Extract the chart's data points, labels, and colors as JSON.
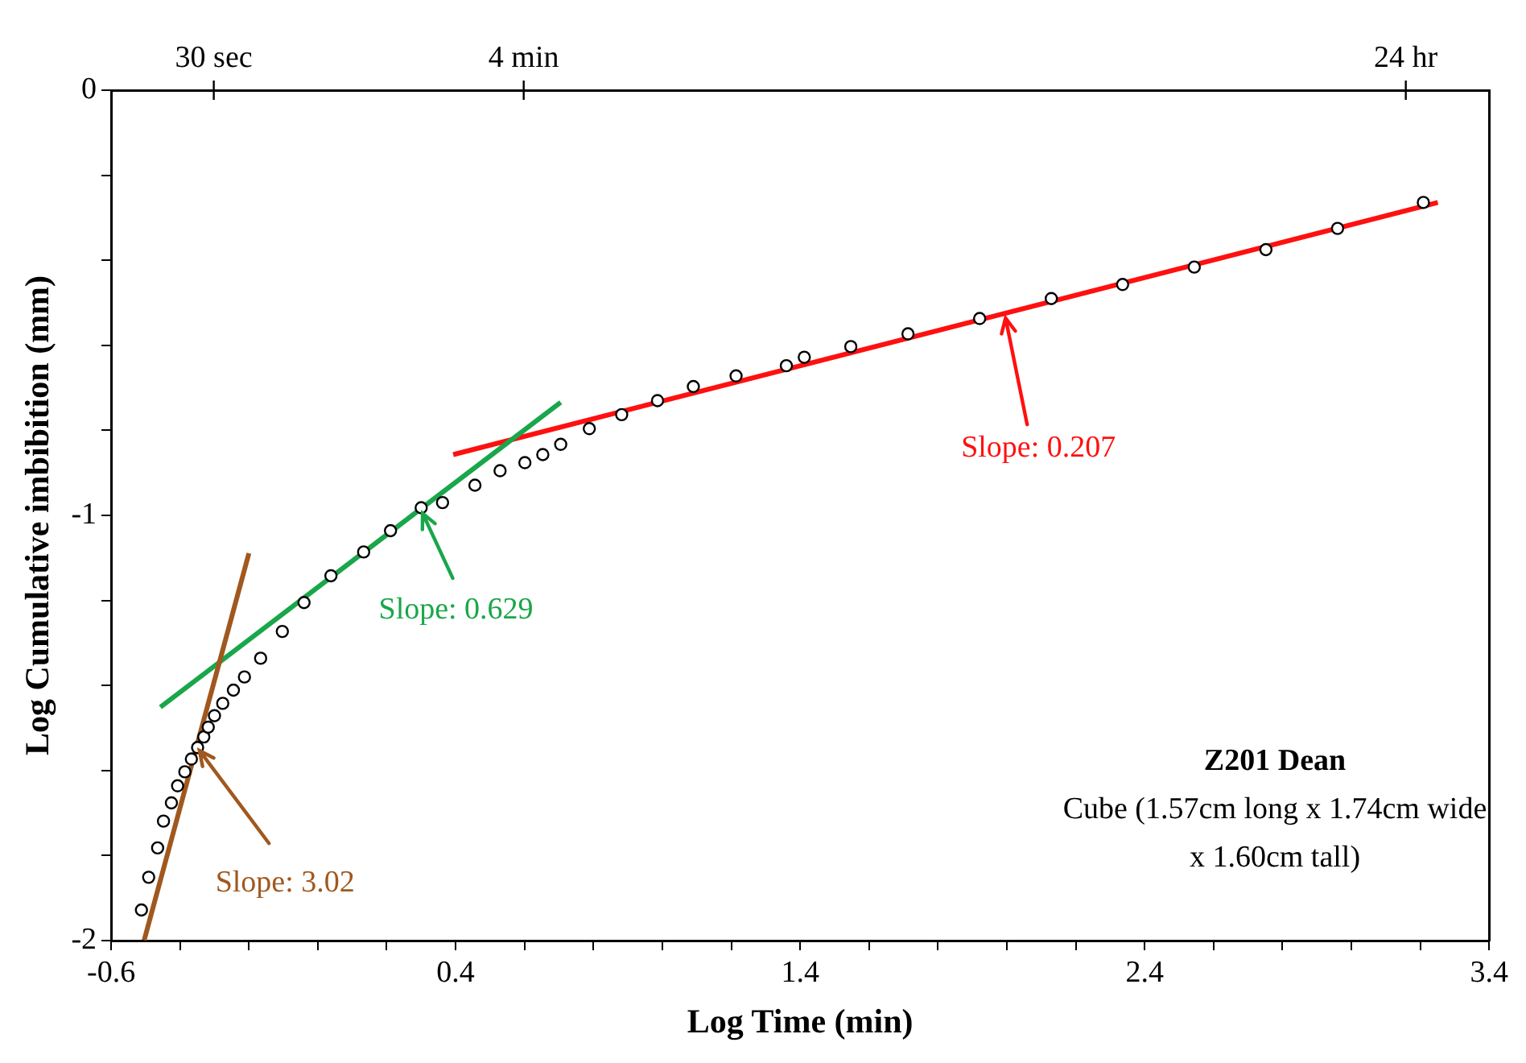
{
  "chart_data": {
    "type": "scatter",
    "xlabel": "Log Time (min)",
    "ylabel": "Log Cumulative imbibition (mm)",
    "xlim": [
      -0.6,
      3.4
    ],
    "xticks": [
      -0.6,
      {
        "value": -0.4,
        "label": null
      },
      {
        "value": -0.2,
        "label": null
      },
      {
        "value": 0,
        "label": null
      },
      {
        "value": 0.2,
        "label": null
      },
      0.4,
      {
        "value": 0.6,
        "label": null
      },
      {
        "value": 0.8,
        "label": null
      },
      {
        "value": 1.0,
        "label": null
      },
      {
        "value": 1.2,
        "label": null
      },
      1.4,
      {
        "value": 1.6,
        "label": null
      },
      {
        "value": 1.8,
        "label": null
      },
      {
        "value": 2.0,
        "label": null
      },
      {
        "value": 2.2,
        "label": null
      },
      2.4,
      {
        "value": 2.6,
        "label": null
      },
      {
        "value": 2.8,
        "label": null
      },
      {
        "value": 3.0,
        "label": null
      },
      {
        "value": 3.2,
        "label": null
      },
      3.4
    ],
    "ylim": [
      -2,
      0
    ],
    "yticks": [
      -2,
      {
        "value": -1.8,
        "label": null
      },
      {
        "value": -1.6,
        "label": null
      },
      {
        "value": -1.4,
        "label": null
      },
      {
        "value": -1.2,
        "label": null
      },
      -1,
      {
        "value": -0.8,
        "label": null
      },
      {
        "value": -0.6,
        "label": null
      },
      {
        "value": -0.4,
        "label": null
      },
      {
        "value": -0.2,
        "label": null
      },
      0
    ],
    "grid": false,
    "series": [
      {
        "type": "scatter",
        "marker": "circle",
        "color": "#000000",
        "x": [
          -0.512,
          -0.491,
          -0.465,
          -0.448,
          -0.425,
          -0.407,
          -0.386,
          -0.367,
          -0.349,
          -0.331,
          -0.318,
          -0.3,
          -0.276,
          -0.245,
          -0.213,
          -0.166,
          -0.103,
          -0.04,
          0.038,
          0.133,
          0.211,
          0.3,
          0.362,
          0.456,
          0.529,
          0.601,
          0.653,
          0.705,
          0.788,
          0.882,
          0.986,
          1.09,
          1.214,
          1.36,
          1.412,
          1.547,
          1.713,
          1.921,
          2.129,
          2.336,
          2.544,
          2.752,
          2.96,
          3.209
        ],
        "values": [
          -1.928,
          -1.851,
          -1.782,
          -1.719,
          -1.676,
          -1.636,
          -1.603,
          -1.573,
          -1.546,
          -1.521,
          -1.498,
          -1.471,
          -1.442,
          -1.411,
          -1.38,
          -1.336,
          -1.273,
          -1.205,
          -1.142,
          -1.086,
          -1.036,
          -0.982,
          -0.97,
          -0.929,
          -0.895,
          -0.876,
          -0.857,
          -0.833,
          -0.796,
          -0.763,
          -0.73,
          -0.697,
          -0.672,
          -0.648,
          -0.628,
          -0.603,
          -0.573,
          -0.537,
          -0.49,
          -0.457,
          -0.416,
          -0.375,
          -0.325,
          -0.264
        ]
      },
      {
        "type": "line",
        "marker": "none",
        "name": "Slope: 3.02",
        "color": "#a0581e",
        "x": [
          -0.504,
          -0.2
        ],
        "values": [
          -1.999,
          -1.089
        ]
      },
      {
        "type": "line",
        "marker": "none",
        "name": "Slope: 0.629",
        "color": "#1aa64a",
        "x": [
          -0.457,
          0.705
        ],
        "values": [
          -1.451,
          -0.734
        ]
      },
      {
        "type": "line",
        "marker": "none",
        "name": "Slope: 0.207",
        "color": "#ff1010",
        "x": [
          0.393,
          3.251
        ],
        "values": [
          -0.857,
          -0.264
        ]
      }
    ],
    "annotations": [
      "Z201 Dean",
      "Cube (1.57cm long x 1.74cm wide x 1.60cm tall)",
      "30 sec",
      "4 min",
      "24 hr"
    ]
  }
}
